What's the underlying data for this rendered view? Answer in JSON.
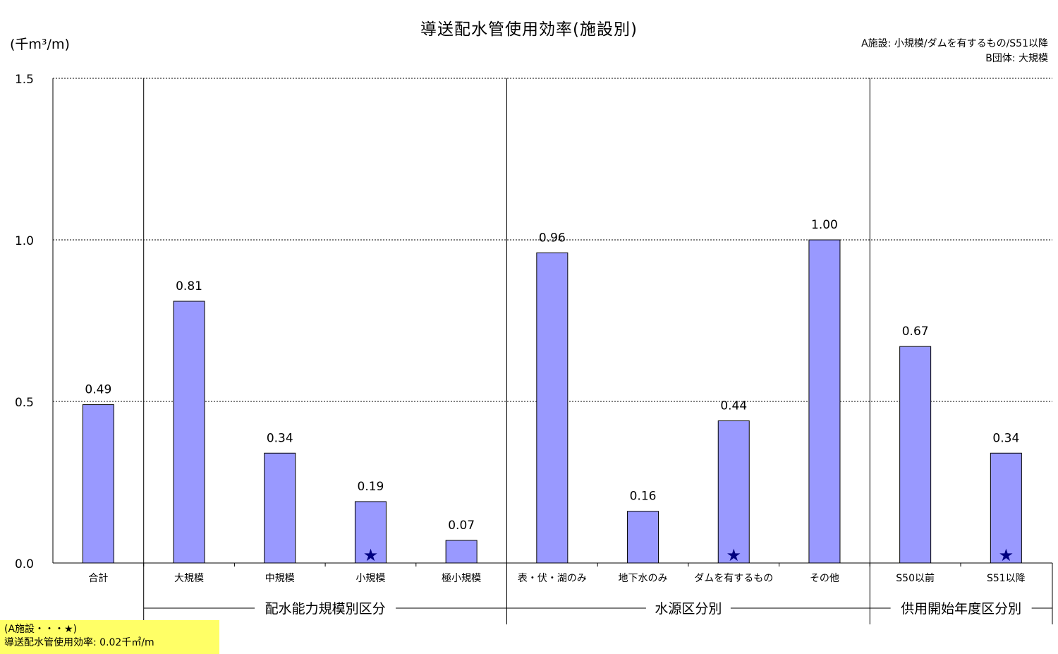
{
  "title": "導送配水管使用効率(施設別)",
  "unit_label": "(千m³/m)",
  "legend_note": {
    "line1": "A施設: 小規模/ダムを有するもの/S51以降",
    "line2": "B団体: 大規模"
  },
  "note_box": {
    "line1": "(A施設・・・★)",
    "line2": "導送配水管使用効率: 0.02千㎥/m"
  },
  "colors": {
    "bar_fill": "#9999ff",
    "bar_stroke": "#000000",
    "star": "#000080",
    "note_background": "#ffff66"
  },
  "chart_data": {
    "type": "bar",
    "title": "導送配水管使用効率(施設別)",
    "ylabel": "(千m³/m)",
    "ylim": [
      0,
      1.5
    ],
    "yticks": [
      "0.0",
      "0.5",
      "1.0",
      "1.5"
    ],
    "grid": true,
    "categories": [
      "合計",
      "大規模",
      "中規模",
      "小規模",
      "極小規模",
      "表・伏・湖のみ",
      "地下水のみ",
      "ダムを有するもの",
      "その他",
      "S50以前",
      "S51以降"
    ],
    "values": [
      0.49,
      0.81,
      0.34,
      0.19,
      0.07,
      0.96,
      0.16,
      0.44,
      1.0,
      0.67,
      0.34
    ],
    "value_labels": [
      "0.49",
      "0.81",
      "0.34",
      "0.19",
      "0.07",
      "0.96",
      "0.16",
      "0.44",
      "1.00",
      "0.67",
      "0.34"
    ],
    "star_marker": "★",
    "starred_categories": [
      "小規模",
      "ダムを有するもの",
      "S51以降"
    ],
    "groups": [
      {
        "label": "配水能力規模別区分",
        "categories": [
          "大規模",
          "中規模",
          "小規模",
          "極小規模"
        ]
      },
      {
        "label": "水源区分別",
        "categories": [
          "表・伏・湖のみ",
          "地下水のみ",
          "ダムを有するもの",
          "その他"
        ]
      },
      {
        "label": "供用開始年度区分別",
        "categories": [
          "S50以前",
          "S51以降"
        ]
      }
    ]
  }
}
